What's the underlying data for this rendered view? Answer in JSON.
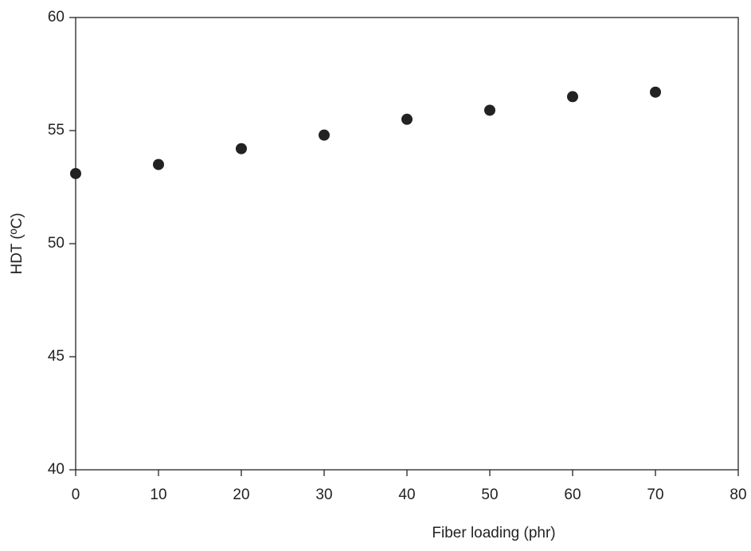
{
  "chart_data": {
    "type": "scatter",
    "x_label": "Fiber loading (phr)",
    "y_label": "HDT (ºC)",
    "x": [
      0,
      10,
      20,
      30,
      40,
      50,
      60,
      70
    ],
    "series": [
      {
        "color": "#222222",
        "values": [
          53.1,
          53.5,
          54.2,
          54.8,
          55.5,
          55.9,
          56.5,
          56.7
        ]
      }
    ],
    "xlim": [
      0,
      80
    ],
    "xticks": [
      0,
      10,
      20,
      30,
      40,
      50,
      60,
      70,
      80
    ],
    "ylim": [
      40,
      60
    ],
    "yticks": [
      40,
      45,
      50,
      55,
      60
    ]
  }
}
